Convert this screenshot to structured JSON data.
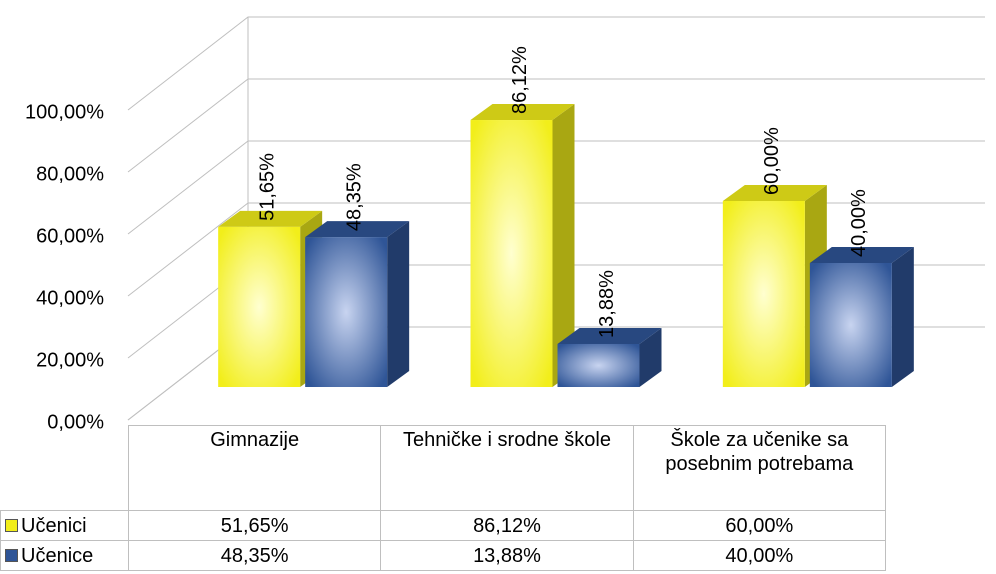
{
  "chart_data": {
    "type": "bar",
    "categories": [
      "Gimnazije",
      "Tehničke i srodne škole",
      "Škole za učenike sa posebnim potrebama"
    ],
    "series": [
      {
        "name": "Učenici",
        "color": "#f2ee1a",
        "values": [
          51.65,
          86.12,
          60.0
        ],
        "value_labels": [
          "51,65%",
          "86,12%",
          "60,00%"
        ]
      },
      {
        "name": "Učenice",
        "color": "#2f5597",
        "values": [
          48.35,
          13.88,
          40.0
        ],
        "value_labels": [
          "48,35%",
          "13,88%",
          "40,00%"
        ]
      }
    ],
    "ylim": [
      0,
      100
    ],
    "yticks": [
      {
        "value": 0,
        "label": "0,00%"
      },
      {
        "value": 20,
        "label": "20,00%"
      },
      {
        "value": 40,
        "label": "40,00%"
      },
      {
        "value": 60,
        "label": "60,00%"
      },
      {
        "value": 80,
        "label": "80,00%"
      },
      {
        "value": 100,
        "label": "100,00%"
      }
    ],
    "grid": true,
    "data_table": true
  }
}
